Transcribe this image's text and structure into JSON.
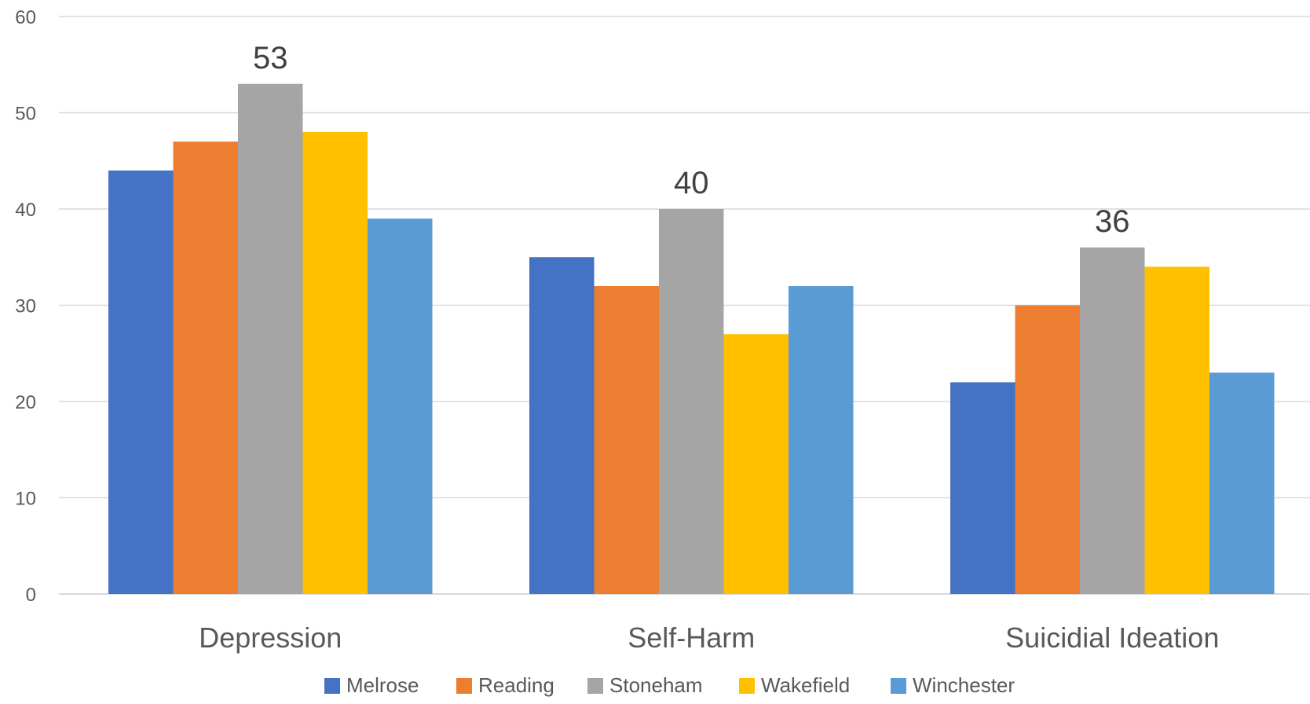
{
  "chart_data": {
    "type": "bar",
    "title": "",
    "xlabel": "",
    "ylabel": "",
    "ylim": [
      0,
      60
    ],
    "yticks": [
      0,
      10,
      20,
      30,
      40,
      50,
      60
    ],
    "grid": true,
    "legend_position": "bottom",
    "categories": [
      "Depression",
      "Self-Harm",
      "Suicidial Ideation"
    ],
    "series": [
      {
        "name": "Melrose",
        "color": "#4472C4",
        "values": [
          44,
          35,
          22
        ]
      },
      {
        "name": "Reading",
        "color": "#ED7D31",
        "values": [
          47,
          32,
          30
        ]
      },
      {
        "name": "Stoneham",
        "color": "#A5A5A5",
        "values": [
          53,
          40,
          36
        ]
      },
      {
        "name": "Wakefield",
        "color": "#FFC000",
        "values": [
          48,
          27,
          34
        ]
      },
      {
        "name": "Winchester",
        "color": "#5B9BD5",
        "values": [
          39,
          32,
          23
        ]
      }
    ],
    "data_labels": [
      {
        "series": "Stoneham",
        "category": "Depression",
        "text": "53"
      },
      {
        "series": "Stoneham",
        "category": "Self-Harm",
        "text": "40"
      },
      {
        "series": "Stoneham",
        "category": "Suicidial Ideation",
        "text": "36"
      }
    ]
  }
}
